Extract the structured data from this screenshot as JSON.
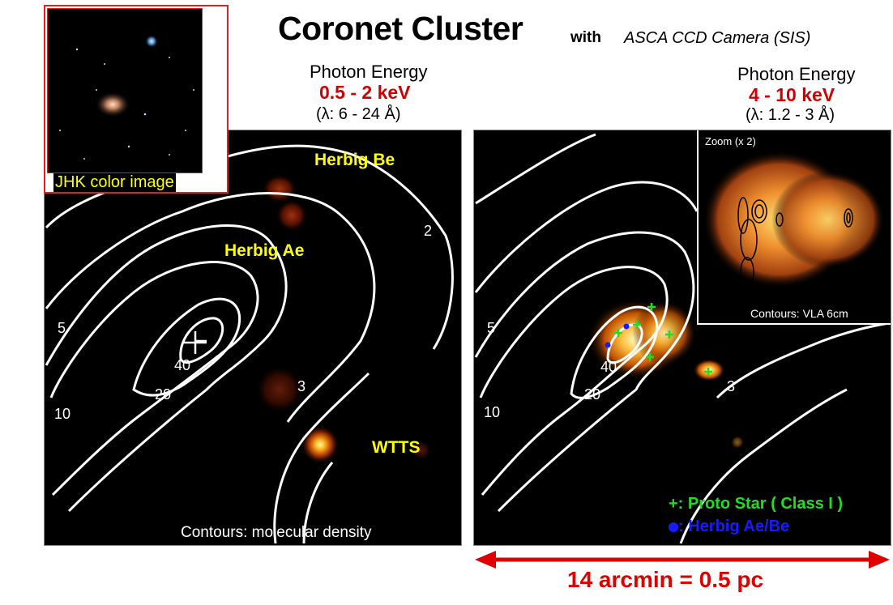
{
  "header": {
    "title": "Coronet Cluster",
    "with": "with",
    "camera": "ASCA CCD Camera (SIS)"
  },
  "soft_band": {
    "label": "Photon Energy",
    "range": "0.5 - 2 keV",
    "lambda": "(λ: 6 - 24 Å)"
  },
  "hard_band": {
    "label": "Photon Energy",
    "range": "4 - 10 keV",
    "lambda": "(λ: 1.2 - 3 Å)"
  },
  "jhk_inset": {
    "caption": "JHK color image"
  },
  "left_panel": {
    "labels": {
      "herbig_be": "Herbig Be",
      "herbig_ae": "Herbig Ae",
      "wtts": "WTTS"
    },
    "contour_levels": [
      "2",
      "3",
      "5",
      "10",
      "20",
      "40"
    ],
    "caption": "Contours: molecular density"
  },
  "right_panel": {
    "contour_levels": [
      "3",
      "5",
      "10",
      "20",
      "40"
    ],
    "zoom_label": "Zoom (x 2)",
    "zoom_caption": "Contours:  VLA 6cm",
    "legend": {
      "proto_star": "+: Proto Star ( Class I )",
      "herbig": ": Herbig Ae/Be"
    }
  },
  "scale_bar": {
    "label": "14 arcmin = 0.5 pc"
  },
  "colors": {
    "accent_red": "#d00000",
    "label_yellow": "#ffff00",
    "proto_green": "#22dd22",
    "herbig_blue": "#1a1aff"
  }
}
